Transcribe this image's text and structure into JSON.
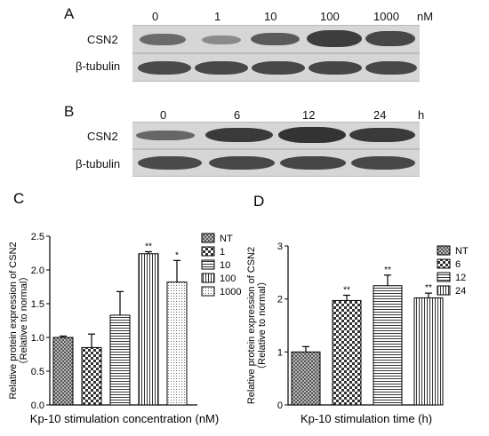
{
  "panel_a": {
    "letter": "A",
    "lanes": [
      "0",
      "1",
      "10",
      "100",
      "1000"
    ],
    "unit": "nM",
    "rows": [
      "CSN2",
      "β-tubulin"
    ]
  },
  "panel_b": {
    "letter": "B",
    "lanes": [
      "0",
      "6",
      "12",
      "24"
    ],
    "unit": "h",
    "rows": [
      "CSN2",
      "β-tubulin"
    ]
  },
  "chart_data": [
    {
      "panel": "C",
      "type": "bar",
      "categories": [
        "NT",
        "1",
        "10",
        "100",
        "1000"
      ],
      "values": [
        1.0,
        0.85,
        1.33,
        2.24,
        1.82
      ],
      "errors": [
        0.02,
        0.2,
        0.35,
        0.03,
        0.32
      ],
      "significance": [
        "",
        "",
        "",
        "**",
        "*"
      ],
      "legend": [
        "NT",
        "1",
        "10",
        "100",
        "1000"
      ],
      "ylabel_line1": "Relative protein expression of CSN2",
      "ylabel_line2": "（Relative to normal）",
      "xlabel": "Kp-10 stimulation concentration (nM)",
      "ylim": [
        0,
        2.5
      ],
      "yticks": [
        "0.0",
        "0.5",
        "1.0",
        "1.5",
        "2.0",
        "2.5"
      ]
    },
    {
      "panel": "D",
      "type": "bar",
      "categories": [
        "NT",
        "6",
        "12",
        "24"
      ],
      "values": [
        1.0,
        1.97,
        2.25,
        2.02
      ],
      "errors": [
        0.1,
        0.1,
        0.2,
        0.09
      ],
      "significance": [
        "",
        "**",
        "**",
        "**"
      ],
      "legend": [
        "NT",
        "6",
        "12",
        "24"
      ],
      "ylabel_line1": "Relative protein expression of CSN2",
      "ylabel_line2": "（Relative to normal）",
      "xlabel": "Kp-10 stimulation time (h)",
      "ylim": [
        0,
        3
      ],
      "yticks": [
        "0",
        "1",
        "2",
        "3"
      ]
    }
  ]
}
